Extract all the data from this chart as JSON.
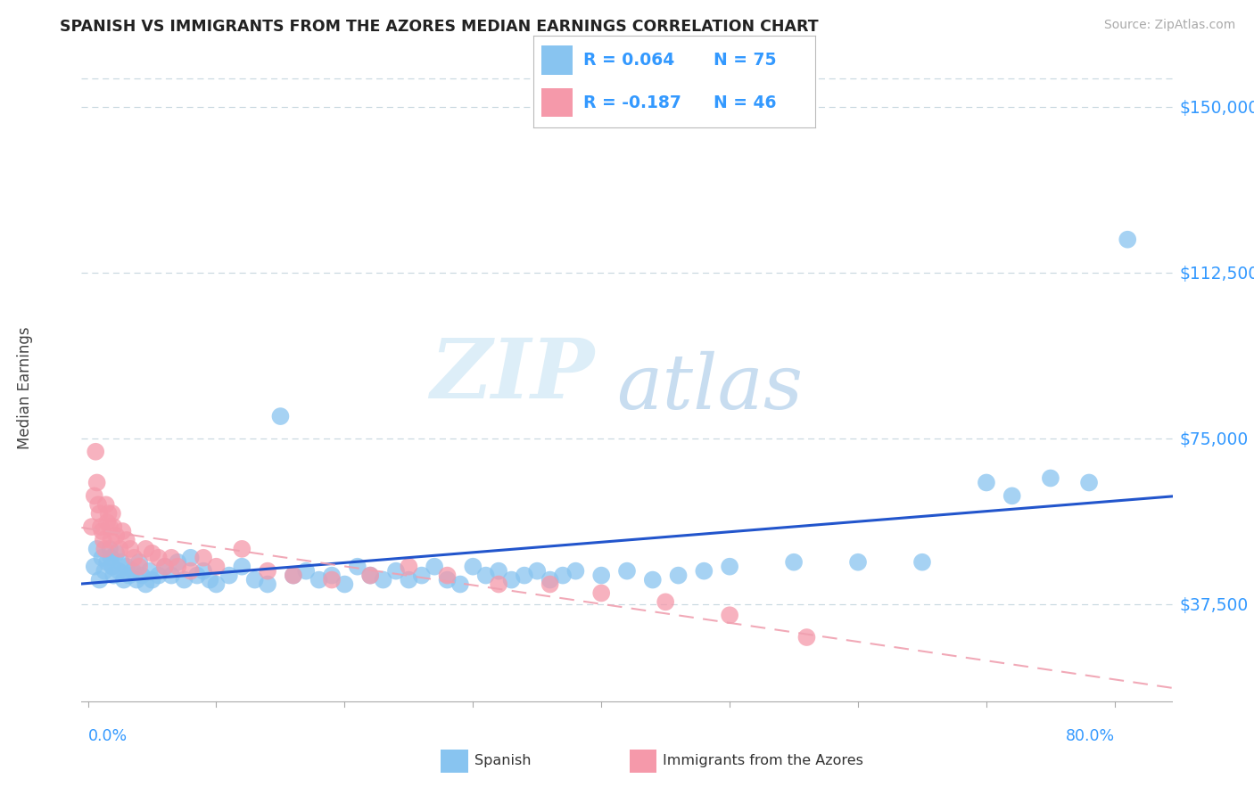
{
  "title": "SPANISH VS IMMIGRANTS FROM THE AZORES MEDIAN EARNINGS CORRELATION CHART",
  "source": "Source: ZipAtlas.com",
  "ylabel": "Median Earnings",
  "legend_blue_r": "R = 0.064",
  "legend_blue_n": "N = 75",
  "legend_pink_r": "R = -0.187",
  "legend_pink_n": "N = 46",
  "legend_label_blue": "Spanish",
  "legend_label_pink": "Immigrants from the Azores",
  "y_ticks": [
    37500,
    75000,
    112500,
    150000
  ],
  "y_tick_labels": [
    "$37,500",
    "$75,000",
    "$112,500",
    "$150,000"
  ],
  "y_min": 15000,
  "y_max": 158000,
  "x_min": -0.005,
  "x_max": 0.845,
  "scatter_blue_color": "#88c4f0",
  "scatter_pink_color": "#f599aa",
  "line_blue_color": "#2255cc",
  "line_pink_color": "#f0a0b0",
  "grid_color": "#c8d8e0",
  "watermark_color": "#ddeef8",
  "title_color": "#222222",
  "tick_label_color": "#3399ff",
  "blue_x": [
    0.005,
    0.007,
    0.009,
    0.011,
    0.013,
    0.015,
    0.017,
    0.018,
    0.019,
    0.02,
    0.022,
    0.024,
    0.026,
    0.028,
    0.03,
    0.032,
    0.035,
    0.038,
    0.04,
    0.042,
    0.045,
    0.048,
    0.05,
    0.055,
    0.06,
    0.065,
    0.07,
    0.075,
    0.08,
    0.085,
    0.09,
    0.095,
    0.1,
    0.11,
    0.12,
    0.13,
    0.14,
    0.15,
    0.16,
    0.17,
    0.18,
    0.19,
    0.2,
    0.21,
    0.22,
    0.23,
    0.24,
    0.25,
    0.26,
    0.27,
    0.28,
    0.29,
    0.3,
    0.31,
    0.32,
    0.33,
    0.34,
    0.35,
    0.36,
    0.37,
    0.38,
    0.4,
    0.42,
    0.44,
    0.46,
    0.48,
    0.5,
    0.55,
    0.6,
    0.65,
    0.7,
    0.72,
    0.75,
    0.78,
    0.81
  ],
  "blue_y": [
    46000,
    50000,
    43000,
    48000,
    45000,
    47000,
    50000,
    48000,
    46000,
    44000,
    49000,
    45000,
    47000,
    43000,
    46000,
    44000,
    45000,
    43000,
    47000,
    44000,
    42000,
    45000,
    43000,
    44000,
    46000,
    44000,
    47000,
    43000,
    48000,
    44000,
    45000,
    43000,
    42000,
    44000,
    46000,
    43000,
    42000,
    80000,
    44000,
    45000,
    43000,
    44000,
    42000,
    46000,
    44000,
    43000,
    45000,
    43000,
    44000,
    46000,
    43000,
    42000,
    46000,
    44000,
    45000,
    43000,
    44000,
    45000,
    43000,
    44000,
    45000,
    44000,
    45000,
    43000,
    44000,
    45000,
    46000,
    47000,
    47000,
    47000,
    65000,
    62000,
    66000,
    65000,
    120000
  ],
  "pink_x": [
    0.003,
    0.005,
    0.006,
    0.007,
    0.008,
    0.009,
    0.01,
    0.011,
    0.012,
    0.013,
    0.014,
    0.015,
    0.016,
    0.017,
    0.018,
    0.019,
    0.02,
    0.022,
    0.025,
    0.027,
    0.03,
    0.033,
    0.036,
    0.04,
    0.045,
    0.05,
    0.055,
    0.06,
    0.065,
    0.07,
    0.08,
    0.09,
    0.1,
    0.12,
    0.14,
    0.16,
    0.19,
    0.22,
    0.25,
    0.28,
    0.32,
    0.36,
    0.4,
    0.45,
    0.5,
    0.56
  ],
  "pink_y": [
    55000,
    62000,
    72000,
    65000,
    60000,
    58000,
    55000,
    54000,
    52000,
    50000,
    60000,
    56000,
    58000,
    55000,
    52000,
    58000,
    55000,
    53000,
    50000,
    54000,
    52000,
    50000,
    48000,
    46000,
    50000,
    49000,
    48000,
    46000,
    48000,
    46000,
    45000,
    48000,
    46000,
    50000,
    45000,
    44000,
    43000,
    44000,
    46000,
    44000,
    42000,
    42000,
    40000,
    38000,
    35000,
    30000
  ]
}
